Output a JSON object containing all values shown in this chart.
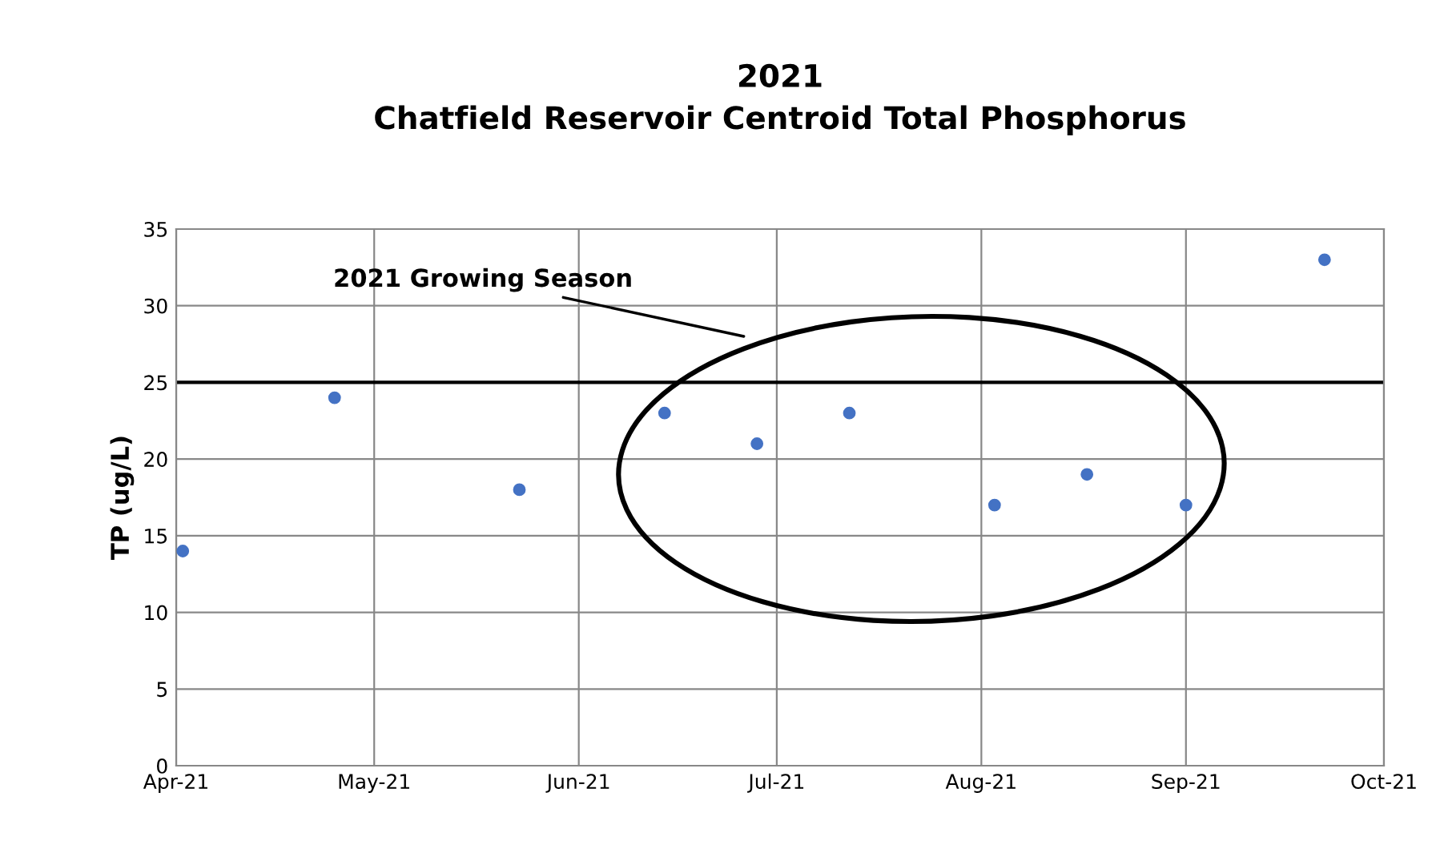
{
  "chart_data": {
    "type": "scatter",
    "title": "2021\nChatfield Reservoir Centroid Total Phosphorus",
    "ylabel": "TP (ug/L)",
    "x": [
      "2021-04-02",
      "2021-04-25",
      "2021-05-23",
      "2021-06-14",
      "2021-06-28",
      "2021-07-12",
      "2021-08-03",
      "2021-08-17",
      "2021-09-01",
      "2021-09-22"
    ],
    "series": [
      {
        "color": "#4472c4",
        "values": [
          14,
          24,
          18,
          23,
          21,
          23,
          17,
          19,
          17,
          33
        ]
      }
    ],
    "marker": "circle",
    "xlim": [
      "2021-04-01",
      "2021-10-01"
    ],
    "xticks": [
      {
        "value": "2021-04-01",
        "label": "Apr-21"
      },
      {
        "value": "2021-05-01",
        "label": "May-21"
      },
      {
        "value": "2021-06-01",
        "label": "Jun-21"
      },
      {
        "value": "2021-07-01",
        "label": "Jul-21"
      },
      {
        "value": "2021-08-01",
        "label": "Aug-21"
      },
      {
        "value": "2021-09-01",
        "label": "Sep-21"
      },
      {
        "value": "2021-10-01",
        "label": "Oct-21"
      }
    ],
    "ylim": [
      0,
      35
    ],
    "yticks": [
      0,
      5,
      10,
      15,
      20,
      25,
      30,
      35
    ],
    "grid": true,
    "ref_lines": [
      {
        "axis": "y",
        "value": 25,
        "color": "#000000",
        "line_style": "solid"
      }
    ],
    "annotations": [
      "2021 Growing Season"
    ]
  }
}
